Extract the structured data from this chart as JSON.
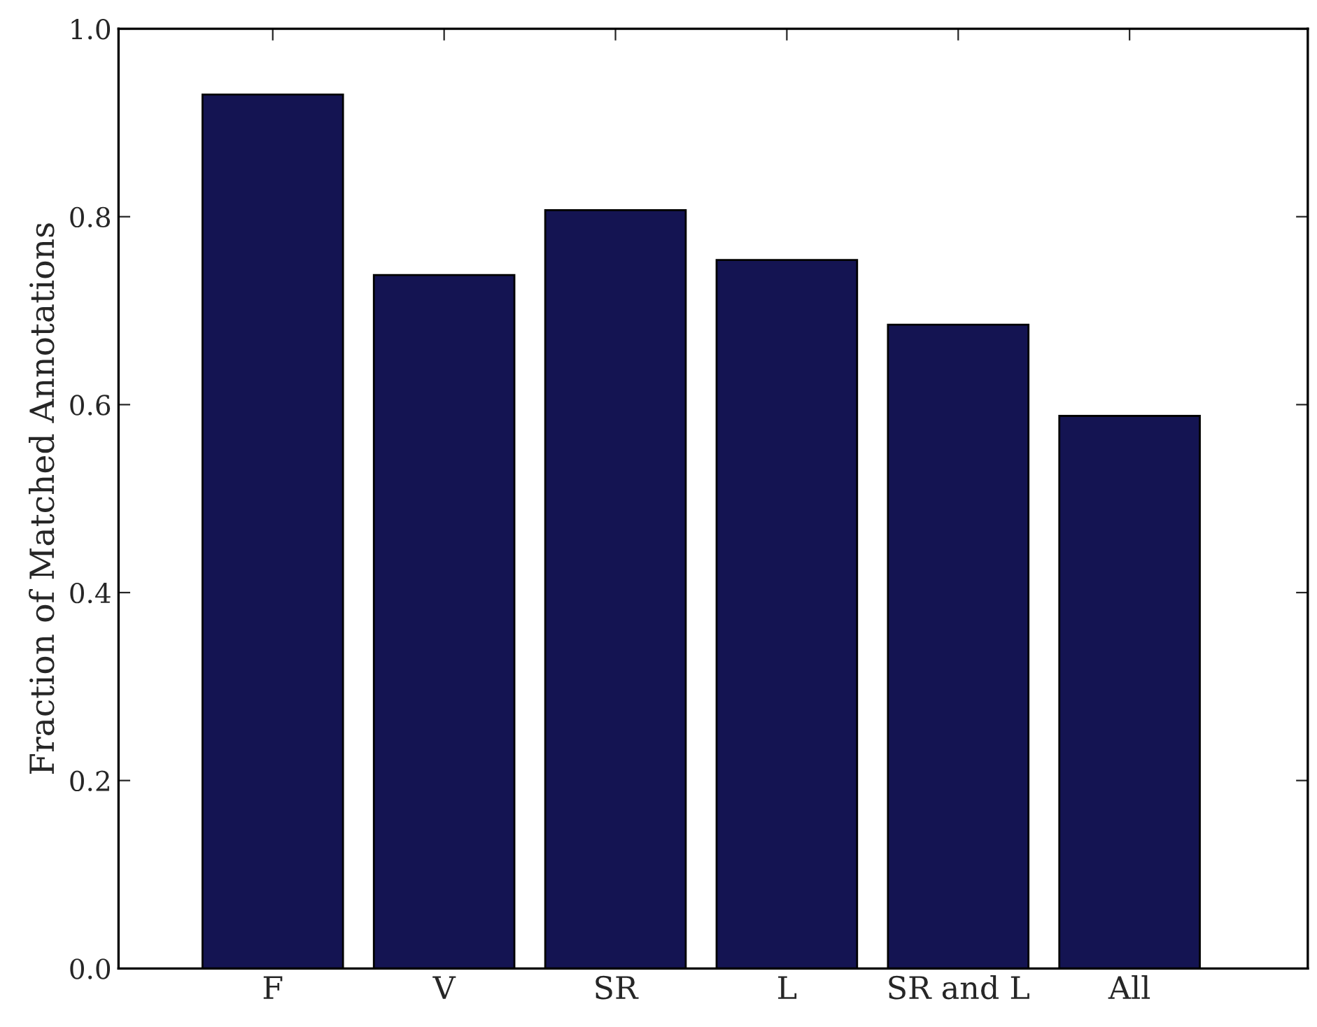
{
  "chart_data": {
    "type": "bar",
    "ylabel": "Fraction of Matched Annotations",
    "categories": [
      "F",
      "V",
      "SR",
      "L",
      "SR and L",
      "All"
    ],
    "values": [
      0.93,
      0.738,
      0.807,
      0.754,
      0.685,
      0.588
    ],
    "color": "#141452",
    "ylim": [
      0,
      1.0
    ],
    "yticks": [
      {
        "value": 0,
        "label": "0.0"
      },
      {
        "value": 0.2,
        "label": "0.2"
      },
      {
        "value": 0.4,
        "label": "0.4"
      },
      {
        "value": 0.6,
        "label": "0.6"
      },
      {
        "value": 0.8,
        "label": "0.8"
      },
      {
        "value": 1.0,
        "label": "1.0"
      }
    ],
    "grid": false
  }
}
